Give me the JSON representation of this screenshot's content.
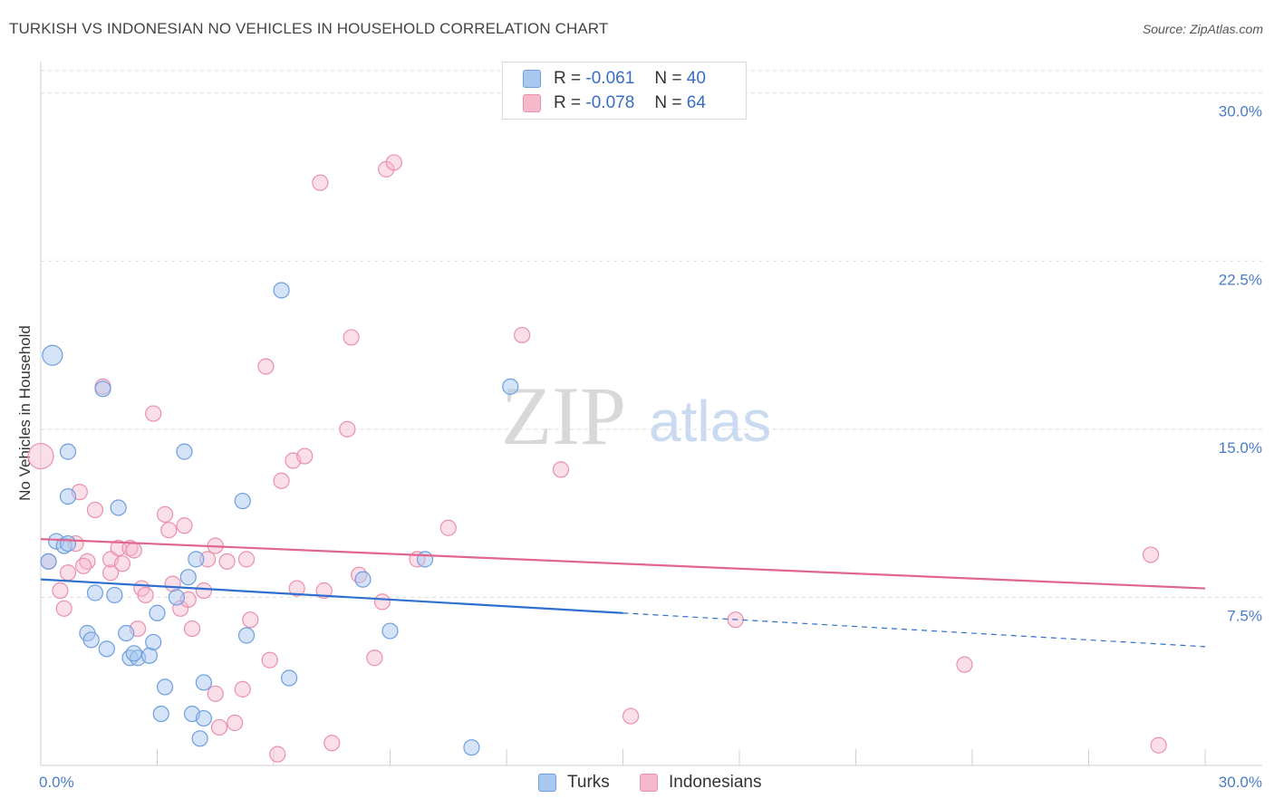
{
  "title": "TURKISH VS INDONESIAN NO VEHICLES IN HOUSEHOLD CORRELATION CHART",
  "source": "Source: ZipAtlas.com",
  "watermark": {
    "zip": "ZIP",
    "atlas": "atlas"
  },
  "stats": {
    "r_label": "R =",
    "n_label": "N =",
    "turks": {
      "r": "-0.061",
      "n": "40"
    },
    "indonesians": {
      "r": "-0.078",
      "n": "64"
    }
  },
  "legend": {
    "turks": "Turks",
    "indonesians": "Indonesians"
  },
  "colors": {
    "turks_fill": "#a9c8f0",
    "turks_stroke": "#6d9ee0",
    "turks_line": "#2f6fcf",
    "indonesians_fill": "#f7b8cb",
    "indonesians_stroke": "#ec8fac",
    "indonesians_line": "#e0668f",
    "tick_text": "#4a7cc9",
    "grid": "#dcdcdc"
  },
  "chart_data": {
    "type": "scatter",
    "title": "TURKISH VS INDONESIAN NO VEHICLES IN HOUSEHOLD CORRELATION CHART",
    "xlabel": "",
    "ylabel": "No Vehicles in Household",
    "xlim": [
      0,
      30
    ],
    "ylim": [
      0,
      31
    ],
    "x_ticks": [
      {
        "value": 0,
        "label": "0.0%"
      },
      {
        "value": 30,
        "label": "30.0%"
      }
    ],
    "y_ticks": [
      {
        "value": 7.5,
        "label": "7.5%"
      },
      {
        "value": 15,
        "label": "15.0%"
      },
      {
        "value": 22.5,
        "label": "22.5%"
      },
      {
        "value": 30,
        "label": "30.0%"
      }
    ],
    "grid": "horizontal dashed",
    "legend_position": "bottom-center",
    "series": [
      {
        "name": "Turks",
        "trend": {
          "x0": 0,
          "y0": 8.3,
          "x1": 15,
          "y1": 6.8,
          "dash_to_x": 30,
          "dash_to_y": 5.3
        },
        "points": [
          [
            0.3,
            18.3
          ],
          [
            0.4,
            10.0
          ],
          [
            0.6,
            9.8
          ],
          [
            0.7,
            9.9
          ],
          [
            0.2,
            9.1
          ],
          [
            0.7,
            14.0
          ],
          [
            0.7,
            12.0
          ],
          [
            1.6,
            16.8
          ],
          [
            2.0,
            11.5
          ],
          [
            1.4,
            7.7
          ],
          [
            1.9,
            7.6
          ],
          [
            1.2,
            5.9
          ],
          [
            1.3,
            5.6
          ],
          [
            1.7,
            5.2
          ],
          [
            2.2,
            5.9
          ],
          [
            2.3,
            4.8
          ],
          [
            2.5,
            4.8
          ],
          [
            2.8,
            4.9
          ],
          [
            2.9,
            5.5
          ],
          [
            2.4,
            5.0
          ],
          [
            3.0,
            6.8
          ],
          [
            3.2,
            3.5
          ],
          [
            3.1,
            2.3
          ],
          [
            3.7,
            14.0
          ],
          [
            3.8,
            8.4
          ],
          [
            3.5,
            7.5
          ],
          [
            4.0,
            9.2
          ],
          [
            4.2,
            3.7
          ],
          [
            3.9,
            2.3
          ],
          [
            4.2,
            2.1
          ],
          [
            4.1,
            1.2
          ],
          [
            5.2,
            11.8
          ],
          [
            5.3,
            5.8
          ],
          [
            6.2,
            21.2
          ],
          [
            6.4,
            3.9
          ],
          [
            8.3,
            8.3
          ],
          [
            9.0,
            6.0
          ],
          [
            9.9,
            9.2
          ],
          [
            11.1,
            0.8
          ],
          [
            12.1,
            16.9
          ]
        ]
      },
      {
        "name": "Indonesians",
        "trend": {
          "x0": 0,
          "y0": 10.1,
          "x1": 30,
          "y1": 7.9
        },
        "points": [
          [
            0.0,
            13.8
          ],
          [
            0.2,
            9.1
          ],
          [
            0.5,
            7.8
          ],
          [
            0.6,
            7.0
          ],
          [
            0.7,
            8.6
          ],
          [
            0.9,
            9.9
          ],
          [
            1.0,
            12.2
          ],
          [
            1.2,
            9.1
          ],
          [
            1.1,
            8.9
          ],
          [
            1.4,
            11.4
          ],
          [
            1.6,
            16.9
          ],
          [
            1.8,
            8.6
          ],
          [
            1.8,
            9.2
          ],
          [
            2.0,
            9.7
          ],
          [
            2.1,
            9.0
          ],
          [
            2.3,
            9.7
          ],
          [
            2.4,
            9.6
          ],
          [
            2.5,
            6.1
          ],
          [
            2.6,
            7.9
          ],
          [
            2.7,
            7.6
          ],
          [
            2.9,
            15.7
          ],
          [
            3.2,
            11.2
          ],
          [
            3.3,
            10.5
          ],
          [
            3.4,
            8.1
          ],
          [
            3.6,
            7.0
          ],
          [
            3.7,
            10.7
          ],
          [
            3.8,
            7.4
          ],
          [
            3.9,
            6.1
          ],
          [
            4.2,
            7.8
          ],
          [
            4.3,
            9.2
          ],
          [
            4.5,
            9.8
          ],
          [
            4.5,
            3.2
          ],
          [
            4.6,
            1.7
          ],
          [
            4.8,
            9.1
          ],
          [
            5.0,
            1.9
          ],
          [
            5.2,
            3.4
          ],
          [
            5.3,
            9.2
          ],
          [
            5.4,
            6.5
          ],
          [
            5.8,
            17.8
          ],
          [
            5.9,
            4.7
          ],
          [
            6.1,
            0.5
          ],
          [
            6.2,
            12.7
          ],
          [
            6.5,
            13.6
          ],
          [
            6.6,
            7.9
          ],
          [
            6.8,
            13.8
          ],
          [
            7.2,
            26.0
          ],
          [
            7.3,
            7.8
          ],
          [
            7.5,
            1.0
          ],
          [
            7.9,
            15.0
          ],
          [
            8.0,
            19.1
          ],
          [
            8.2,
            8.5
          ],
          [
            8.6,
            4.8
          ],
          [
            8.8,
            7.3
          ],
          [
            8.9,
            26.6
          ],
          [
            9.1,
            26.9
          ],
          [
            9.7,
            9.2
          ],
          [
            10.5,
            10.6
          ],
          [
            12.4,
            19.2
          ],
          [
            13.4,
            13.2
          ],
          [
            15.2,
            2.2
          ],
          [
            17.9,
            6.5
          ],
          [
            23.8,
            4.5
          ],
          [
            28.6,
            9.4
          ],
          [
            28.8,
            0.9
          ]
        ]
      }
    ]
  }
}
